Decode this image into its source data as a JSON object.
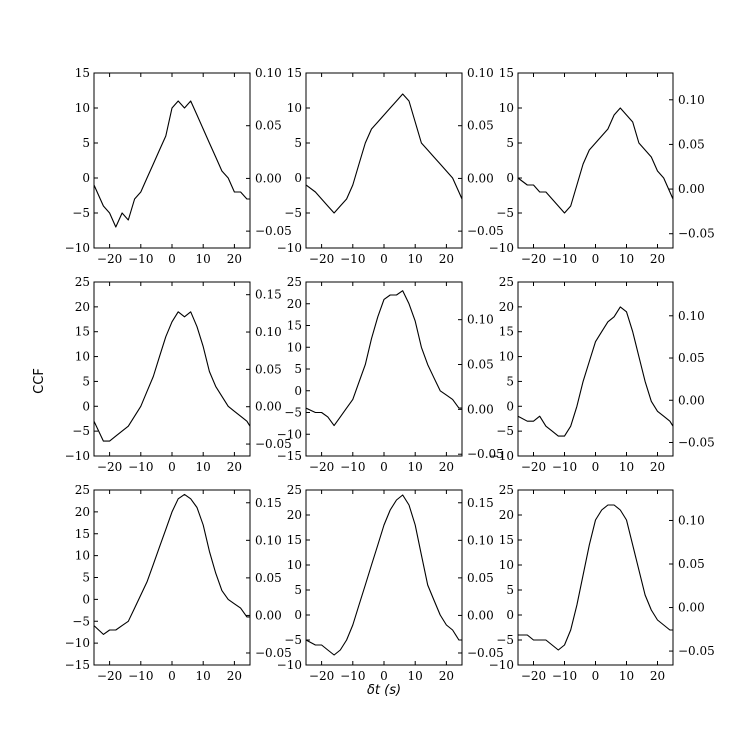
{
  "figure": {
    "ylabel": "CCF",
    "xlabel": "δt (s)"
  },
  "chart_data": [
    {
      "type": "line",
      "xlim": [
        -25,
        25
      ],
      "ylim": [
        -10,
        15
      ],
      "ylim_right": [
        -0.066,
        0.1
      ],
      "xticks": [
        -20,
        -10,
        0,
        10,
        20
      ],
      "xtick_labels": [
        "−20",
        "−10",
        "0",
        "10",
        "20"
      ],
      "yticks": [
        -10,
        -5,
        0,
        5,
        10,
        15
      ],
      "ytick_labels": [
        "−10",
        "−5",
        "0",
        "5",
        "10",
        "15"
      ],
      "yticks_right": [
        -0.05,
        0,
        0.05,
        0.1
      ],
      "ytick_labels_right": [
        "−0.05",
        "0.00",
        "0.05",
        "0.10"
      ],
      "series": [
        {
          "x": [
            -25,
            -22,
            -20,
            -18,
            -16,
            -14,
            -12,
            -10,
            -8,
            -6,
            -4,
            -2,
            0,
            2,
            4,
            6,
            8,
            10,
            12,
            14,
            16,
            18,
            20,
            22,
            24,
            25
          ],
          "values": [
            -1,
            -4,
            -5,
            -7,
            -5,
            -6,
            -3,
            -2,
            0,
            2,
            4,
            6,
            10,
            11,
            10,
            11,
            9,
            7,
            5,
            3,
            1,
            0,
            -2,
            -2,
            -3,
            -3
          ]
        }
      ]
    },
    {
      "type": "line",
      "xlim": [
        -25,
        25
      ],
      "ylim": [
        -10,
        15
      ],
      "ylim_right": [
        -0.066,
        0.1
      ],
      "xticks": [
        -20,
        -10,
        0,
        10,
        20
      ],
      "xtick_labels": [
        "−20",
        "−10",
        "0",
        "10",
        "20"
      ],
      "yticks": [
        -10,
        -5,
        0,
        5,
        10,
        15
      ],
      "ytick_labels": [
        "−10",
        "−5",
        "0",
        "5",
        "10",
        "15"
      ],
      "yticks_right": [
        -0.05,
        0,
        0.05,
        0.1
      ],
      "ytick_labels_right": [
        "−0.05",
        "0.00",
        "0.05",
        "0.10"
      ],
      "series": [
        {
          "x": [
            -25,
            -22,
            -20,
            -18,
            -16,
            -14,
            -12,
            -10,
            -8,
            -6,
            -4,
            -2,
            0,
            2,
            4,
            6,
            8,
            10,
            12,
            14,
            16,
            18,
            20,
            22,
            24,
            25
          ],
          "values": [
            -1,
            -2,
            -3,
            -4,
            -5,
            -4,
            -3,
            -1,
            2,
            5,
            7,
            8,
            9,
            10,
            11,
            12,
            11,
            8,
            5,
            4,
            3,
            2,
            1,
            0,
            -2,
            -3
          ]
        }
      ]
    },
    {
      "type": "line",
      "xlim": [
        -25,
        25
      ],
      "ylim": [
        -10,
        15
      ],
      "ylim_right": [
        -0.066,
        0.13
      ],
      "xticks": [
        -20,
        -10,
        0,
        10,
        20
      ],
      "xtick_labels": [
        "−20",
        "−10",
        "0",
        "10",
        "20"
      ],
      "yticks": [
        -10,
        -5,
        0,
        5,
        10,
        15
      ],
      "ytick_labels": [
        "−10",
        "−5",
        "0",
        "5",
        "10",
        "15"
      ],
      "yticks_right": [
        -0.05,
        0,
        0.05,
        0.1
      ],
      "ytick_labels_right": [
        "−0.05",
        "0.00",
        "0.05",
        "0.10"
      ],
      "series": [
        {
          "x": [
            -25,
            -22,
            -20,
            -18,
            -16,
            -14,
            -12,
            -10,
            -8,
            -6,
            -4,
            -2,
            0,
            2,
            4,
            6,
            8,
            10,
            12,
            14,
            16,
            18,
            20,
            22,
            24,
            25
          ],
          "values": [
            0,
            -1,
            -1,
            -2,
            -2,
            -3,
            -4,
            -5,
            -4,
            -1,
            2,
            4,
            5,
            6,
            7,
            9,
            10,
            9,
            8,
            5,
            4,
            3,
            1,
            0,
            -2,
            -3
          ]
        }
      ]
    },
    {
      "type": "line",
      "xlim": [
        -25,
        25
      ],
      "ylim": [
        -10,
        25
      ],
      "ylim_right": [
        -0.066,
        0.167
      ],
      "xticks": [
        -20,
        -10,
        0,
        10,
        20
      ],
      "xtick_labels": [
        "−20",
        "−10",
        "0",
        "10",
        "20"
      ],
      "yticks": [
        -10,
        -5,
        0,
        5,
        10,
        15,
        20,
        25
      ],
      "ytick_labels": [
        "−10",
        "−5",
        "0",
        "5",
        "10",
        "15",
        "20",
        "25"
      ],
      "yticks_right": [
        -0.05,
        0,
        0.05,
        0.1,
        0.15
      ],
      "ytick_labels_right": [
        "−0.05",
        "0.00",
        "0.05",
        "0.10",
        "0.15"
      ],
      "series": [
        {
          "x": [
            -25,
            -22,
            -20,
            -18,
            -16,
            -14,
            -12,
            -10,
            -8,
            -6,
            -4,
            -2,
            0,
            2,
            4,
            6,
            8,
            10,
            12,
            14,
            16,
            18,
            20,
            22,
            24,
            25
          ],
          "values": [
            -3,
            -7,
            -7,
            -6,
            -5,
            -4,
            -2,
            0,
            3,
            6,
            10,
            14,
            17,
            19,
            18,
            19,
            16,
            12,
            7,
            4,
            2,
            0,
            -1,
            -2,
            -3,
            -4
          ]
        }
      ]
    },
    {
      "type": "line",
      "xlim": [
        -25,
        25
      ],
      "ylim": [
        -15,
        25
      ],
      "ylim_right": [
        -0.052,
        0.142
      ],
      "xticks": [
        -20,
        -10,
        0,
        10,
        20
      ],
      "xtick_labels": [
        "−20",
        "−10",
        "0",
        "10",
        "20"
      ],
      "yticks": [
        -15,
        -10,
        -5,
        0,
        5,
        10,
        15,
        20,
        25
      ],
      "ytick_labels": [
        "−15",
        "−10",
        "−5",
        "0",
        "5",
        "10",
        "15",
        "20",
        "25"
      ],
      "yticks_right": [
        -0.05,
        0,
        0.05,
        0.1
      ],
      "ytick_labels_right": [
        "−0.05",
        "0.00",
        "0.05",
        "0.10"
      ],
      "series": [
        {
          "x": [
            -25,
            -22,
            -20,
            -18,
            -16,
            -14,
            -12,
            -10,
            -8,
            -6,
            -4,
            -2,
            0,
            2,
            4,
            6,
            8,
            10,
            12,
            14,
            16,
            18,
            20,
            22,
            24,
            25
          ],
          "values": [
            -4,
            -5,
            -5,
            -6,
            -8,
            -6,
            -4,
            -2,
            2,
            6,
            12,
            17,
            21,
            22,
            22,
            23,
            20,
            16,
            10,
            6,
            3,
            0,
            -1,
            -2,
            -4,
            -4
          ]
        }
      ]
    },
    {
      "type": "line",
      "xlim": [
        -25,
        25
      ],
      "ylim": [
        -10,
        25
      ],
      "ylim_right": [
        -0.066,
        0.14
      ],
      "xticks": [
        -20,
        -10,
        0,
        10,
        20
      ],
      "xtick_labels": [
        "−20",
        "−10",
        "0",
        "10",
        "20"
      ],
      "yticks": [
        -10,
        -5,
        0,
        5,
        10,
        15,
        20,
        25
      ],
      "ytick_labels": [
        "−10",
        "−5",
        "0",
        "5",
        "10",
        "15",
        "20",
        "25"
      ],
      "yticks_right": [
        -0.05,
        0,
        0.05,
        0.1
      ],
      "ytick_labels_right": [
        "−0.05",
        "0.00",
        "0.05",
        "0.10"
      ],
      "series": [
        {
          "x": [
            -25,
            -22,
            -20,
            -18,
            -16,
            -14,
            -12,
            -10,
            -8,
            -6,
            -4,
            -2,
            0,
            2,
            4,
            6,
            8,
            10,
            12,
            14,
            16,
            18,
            20,
            22,
            24,
            25
          ],
          "values": [
            -2,
            -3,
            -3,
            -2,
            -4,
            -5,
            -6,
            -6,
            -4,
            0,
            5,
            9,
            13,
            15,
            17,
            18,
            20,
            19,
            15,
            10,
            5,
            1,
            -1,
            -2,
            -3,
            -4
          ]
        }
      ]
    },
    {
      "type": "line",
      "xlim": [
        -25,
        25
      ],
      "ylim": [
        -15,
        25
      ],
      "ylim_right": [
        -0.066,
        0.167
      ],
      "xticks": [
        -20,
        -10,
        0,
        10,
        20
      ],
      "xtick_labels": [
        "−20",
        "−10",
        "0",
        "10",
        "20"
      ],
      "yticks": [
        -15,
        -10,
        -5,
        0,
        5,
        10,
        15,
        20,
        25
      ],
      "ytick_labels": [
        "−15",
        "−10",
        "−5",
        "0",
        "5",
        "10",
        "15",
        "20",
        "25"
      ],
      "yticks_right": [
        -0.05,
        0,
        0.05,
        0.1,
        0.15
      ],
      "ytick_labels_right": [
        "−0.05",
        "0.00",
        "0.05",
        "0.10",
        "0.15"
      ],
      "series": [
        {
          "x": [
            -25,
            -22,
            -20,
            -18,
            -16,
            -14,
            -12,
            -10,
            -8,
            -6,
            -4,
            -2,
            0,
            2,
            4,
            6,
            8,
            10,
            12,
            14,
            16,
            18,
            20,
            22,
            24,
            25
          ],
          "values": [
            -6,
            -8,
            -7,
            -7,
            -6,
            -5,
            -2,
            1,
            4,
            8,
            12,
            16,
            20,
            23,
            24,
            23,
            21,
            17,
            11,
            6,
            2,
            0,
            -1,
            -2,
            -4,
            -4
          ]
        }
      ]
    },
    {
      "type": "line",
      "xlim": [
        -25,
        25
      ],
      "ylim": [
        -10,
        25
      ],
      "ylim_right": [
        -0.066,
        0.167
      ],
      "xticks": [
        -20,
        -10,
        0,
        10,
        20
      ],
      "xtick_labels": [
        "−20",
        "−10",
        "0",
        "10",
        "20"
      ],
      "yticks": [
        -10,
        -5,
        0,
        5,
        10,
        15,
        20,
        25
      ],
      "ytick_labels": [
        "−10",
        "−5",
        "0",
        "5",
        "10",
        "15",
        "20",
        "25"
      ],
      "yticks_right": [
        -0.05,
        0,
        0.05,
        0.1,
        0.15
      ],
      "ytick_labels_right": [
        "−0.05",
        "0.00",
        "0.05",
        "0.10",
        "0.15"
      ],
      "series": [
        {
          "x": [
            -25,
            -22,
            -20,
            -18,
            -16,
            -14,
            -12,
            -10,
            -8,
            -6,
            -4,
            -2,
            0,
            2,
            4,
            6,
            8,
            10,
            12,
            14,
            16,
            18,
            20,
            22,
            24,
            25
          ],
          "values": [
            -5,
            -6,
            -6,
            -7,
            -8,
            -7,
            -5,
            -2,
            2,
            6,
            10,
            14,
            18,
            21,
            23,
            24,
            22,
            18,
            12,
            6,
            3,
            0,
            -2,
            -3,
            -5,
            -5
          ]
        }
      ]
    },
    {
      "type": "line",
      "xlim": [
        -25,
        25
      ],
      "ylim": [
        -10,
        25
      ],
      "ylim_right": [
        -0.066,
        0.135
      ],
      "xticks": [
        -20,
        -10,
        0,
        10,
        20
      ],
      "xtick_labels": [
        "−20",
        "−10",
        "0",
        "10",
        "20"
      ],
      "yticks": [
        -10,
        -5,
        0,
        5,
        10,
        15,
        20,
        25
      ],
      "ytick_labels": [
        "−10",
        "−5",
        "0",
        "5",
        "10",
        "15",
        "20",
        "25"
      ],
      "yticks_right": [
        -0.05,
        0,
        0.05,
        0.1
      ],
      "ytick_labels_right": [
        "−0.05",
        "0.00",
        "0.05",
        "0.10"
      ],
      "series": [
        {
          "x": [
            -25,
            -22,
            -20,
            -18,
            -16,
            -14,
            -12,
            -10,
            -8,
            -6,
            -4,
            -2,
            0,
            2,
            4,
            6,
            8,
            10,
            12,
            14,
            16,
            18,
            20,
            22,
            24,
            25
          ],
          "values": [
            -4,
            -4,
            -5,
            -5,
            -5,
            -6,
            -7,
            -6,
            -3,
            2,
            8,
            14,
            19,
            21,
            22,
            22,
            21,
            19,
            14,
            9,
            4,
            1,
            -1,
            -2,
            -3,
            -3
          ]
        }
      ]
    }
  ]
}
